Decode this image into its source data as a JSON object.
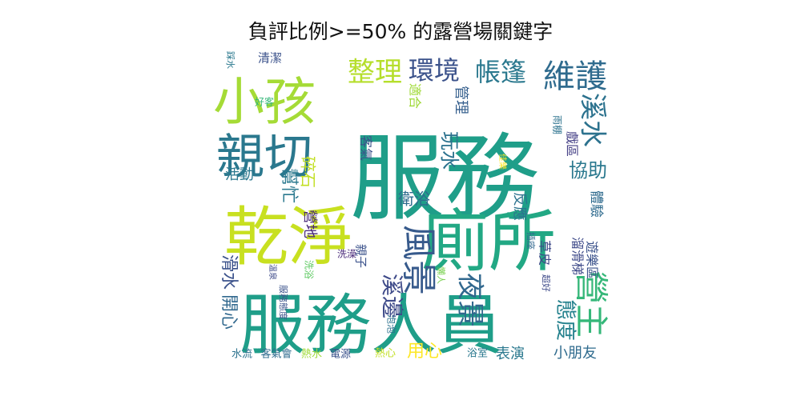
{
  "chart_data": {
    "type": "wordcloud",
    "title": "負評比例>=50% 的露營場關鍵字",
    "colormap": "viridis",
    "words": [
      {
        "text": "服務",
        "weight": 100,
        "color": "#1f9e89"
      },
      {
        "text": "乾淨",
        "weight": 80,
        "color": "#c8e020"
      },
      {
        "text": "廁所",
        "weight": 76,
        "color": "#22a884"
      },
      {
        "text": "服務人員",
        "weight": 74,
        "color": "#1f9e89"
      },
      {
        "text": "小孩",
        "weight": 58,
        "color": "#a5db36"
      },
      {
        "text": "親切",
        "weight": 56,
        "color": "#2a788e"
      },
      {
        "text": "風景",
        "weight": 44,
        "color": "#375a8c"
      },
      {
        "text": "營主",
        "weight": 40,
        "color": "#35b779"
      },
      {
        "text": "維護",
        "weight": 36,
        "color": "#2f6b8e"
      },
      {
        "text": "溪水",
        "weight": 32,
        "color": "#2c728e"
      },
      {
        "text": "整理",
        "weight": 32,
        "color": "#b5de2b"
      },
      {
        "text": "環境",
        "weight": 30,
        "color": "#3b528b"
      },
      {
        "text": "帳篷",
        "weight": 30,
        "color": "#2a788e"
      },
      {
        "text": "夜景",
        "weight": 30,
        "color": "#31688e"
      },
      {
        "text": "溪邊",
        "weight": 26,
        "color": "#3e4a89"
      },
      {
        "text": "態度",
        "weight": 24,
        "color": "#26828e"
      },
      {
        "text": "玩水",
        "weight": 24,
        "color": "#2c728e"
      },
      {
        "text": "協助",
        "weight": 22,
        "color": "#2a788e"
      },
      {
        "text": "開心",
        "weight": 22,
        "color": "#31688e"
      },
      {
        "text": "滑水",
        "weight": 22,
        "color": "#3b528b"
      },
      {
        "text": "幫忙",
        "weight": 22,
        "color": "#2a788e"
      },
      {
        "text": "碎石",
        "weight": 22,
        "color": "#c2df23"
      },
      {
        "text": "衛浴",
        "weight": 20,
        "color": "#2f6b8e"
      },
      {
        "text": "用心",
        "weight": 20,
        "color": "#fde725"
      },
      {
        "text": "小朋友",
        "weight": 18,
        "color": "#2f6b8e"
      },
      {
        "text": "表演",
        "weight": 18,
        "color": "#2a788e"
      },
      {
        "text": "活動",
        "weight": 18,
        "color": "#2a788e"
      },
      {
        "text": "管理",
        "weight": 18,
        "color": "#355f8d"
      },
      {
        "text": "適合",
        "weight": 16,
        "color": "#a0da39"
      },
      {
        "text": "客氣",
        "weight": 16,
        "color": "#3b528b"
      },
      {
        "text": "營地",
        "weight": 16,
        "color": "#482878"
      },
      {
        "text": "反應",
        "weight": 16,
        "color": "#2c728e"
      },
      {
        "text": "體驗",
        "weight": 16,
        "color": "#2f6b8e"
      },
      {
        "text": "草皮",
        "weight": 14,
        "color": "#3e4a89"
      },
      {
        "text": "戲區",
        "weight": 14,
        "color": "#433e85"
      },
      {
        "text": "親子",
        "weight": 14,
        "color": "#3b528b"
      },
      {
        "text": "溜滑梯",
        "weight": 14,
        "color": "#3e4a89"
      },
      {
        "text": "遊樂區",
        "weight": 14,
        "color": "#3b528b"
      },
      {
        "text": "清潔",
        "weight": 14,
        "color": "#3b528b"
      },
      {
        "text": "水流",
        "weight": 12,
        "color": "#2c728e"
      },
      {
        "text": "客氣會",
        "weight": 12,
        "color": "#2f6b8e"
      },
      {
        "text": "熱水",
        "weight": 12,
        "color": "#a0da39"
      },
      {
        "text": "電源",
        "weight": 12,
        "color": "#3b528b"
      },
      {
        "text": "熱心",
        "weight": 12,
        "color": "#c2df23"
      },
      {
        "text": "浴室",
        "weight": 12,
        "color": "#2a788e"
      },
      {
        "text": "好客",
        "weight": 11,
        "color": "#35b779"
      },
      {
        "text": "雨棚",
        "weight": 11,
        "color": "#2c728e"
      },
      {
        "text": "洗澡",
        "weight": 11,
        "color": "#482878"
      },
      {
        "text": "洗浴",
        "weight": 11,
        "color": "#5ec962"
      },
      {
        "text": "服務態度",
        "weight": 11,
        "color": "#3b528b"
      },
      {
        "text": "泡泡",
        "weight": 11,
        "color": "#2c728e"
      },
      {
        "text": "踩水",
        "weight": 11,
        "color": "#2a788e"
      },
      {
        "text": "懶人",
        "weight": 10,
        "color": "#7ad151"
      },
      {
        "text": "超好",
        "weight": 10,
        "color": "#3e4a89"
      },
      {
        "text": "插座",
        "weight": 10,
        "color": "#31688e"
      },
      {
        "text": "溫泉",
        "weight": 10,
        "color": "#3e4a89"
      },
      {
        "text": "佳樂",
        "weight": 10,
        "color": "#fde725"
      }
    ]
  }
}
